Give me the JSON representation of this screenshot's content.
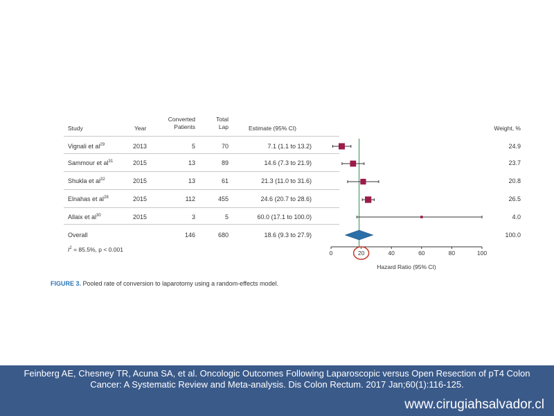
{
  "table": {
    "headers": {
      "study": "Study",
      "year": "Year",
      "converted_line1": "Converted",
      "converted_line2": "Patients",
      "total_line1": "Total",
      "total_line2": "Lap",
      "estimate": "Estimate (95% CI)",
      "weight": "Weight, %"
    },
    "rows": [
      {
        "study": "Vignali et al",
        "ref": "29",
        "year": "2013",
        "converted": "5",
        "total": "70",
        "estimate": "7.1 (1.1 to 13.2)",
        "weight": "24.9"
      },
      {
        "study": "Sammour et al",
        "ref": "31",
        "year": "2015",
        "converted": "13",
        "total": "89",
        "estimate": "14.6 (7.3 to 21.9)",
        "weight": "23.7"
      },
      {
        "study": "Shukla et al",
        "ref": "32",
        "year": "2015",
        "converted": "13",
        "total": "61",
        "estimate": "21.3 (11.0 to 31.6)",
        "weight": "20.8"
      },
      {
        "study": "Elnahas et al",
        "ref": "28",
        "year": "2015",
        "converted": "112",
        "total": "455",
        "estimate": "24.6 (20.7 to 28.6)",
        "weight": "26.5"
      },
      {
        "study": "Allaix et al",
        "ref": "30",
        "year": "2015",
        "converted": "3",
        "total": "5",
        "estimate": "60.0 (17.1 to 100.0)",
        "weight": "4.0"
      }
    ],
    "overall": {
      "study": "Overall",
      "converted": "146",
      "total": "680",
      "estimate": "18.6 (9.3 to 27.9)",
      "weight": "100.0"
    },
    "heterogeneity": {
      "i_symbol": "I",
      "i_sup": "2",
      "text": " = 85.5%, p < 0.001"
    }
  },
  "chart_data": {
    "type": "forest",
    "xlabel": "Hazard Ratio (95% CI)",
    "xlim": [
      0,
      100
    ],
    "xticks": [
      0,
      20,
      40,
      60,
      80,
      100
    ],
    "highlight_tick": 20,
    "points": [
      {
        "estimate": 7.1,
        "lo": 1.1,
        "hi": 13.2,
        "weight": 24.9
      },
      {
        "estimate": 14.6,
        "lo": 7.3,
        "hi": 21.9,
        "weight": 23.7
      },
      {
        "estimate": 21.3,
        "lo": 11.0,
        "hi": 31.6,
        "weight": 20.8
      },
      {
        "estimate": 24.6,
        "lo": 20.7,
        "hi": 28.6,
        "weight": 26.5
      },
      {
        "estimate": 60.0,
        "lo": 17.1,
        "hi": 100.0,
        "weight": 4.0
      }
    ],
    "overall": {
      "estimate": 18.6,
      "lo": 9.3,
      "hi": 27.9
    },
    "colors": {
      "marker": "#9b1b4a",
      "diamond": "#2a6fa8",
      "reference_line": "#2e8b57",
      "highlight_circle": "#c0392b"
    }
  },
  "caption": {
    "label": "FIGURE 3.",
    "text": " Pooled rate of conversion to laparotomy using a random-effects model."
  },
  "footer": {
    "citation": "Feinberg AE, Chesney TR, Acuna SA, et al. Oncologic Outcomes Following Laparoscopic versus Open Resection of pT4 Colon Cancer: A Systematic Review and Meta-analysis. Dis Colon Rectum. 2017 Jan;60(1):116-125.",
    "website": "www.cirugiahsalvador.cl"
  }
}
